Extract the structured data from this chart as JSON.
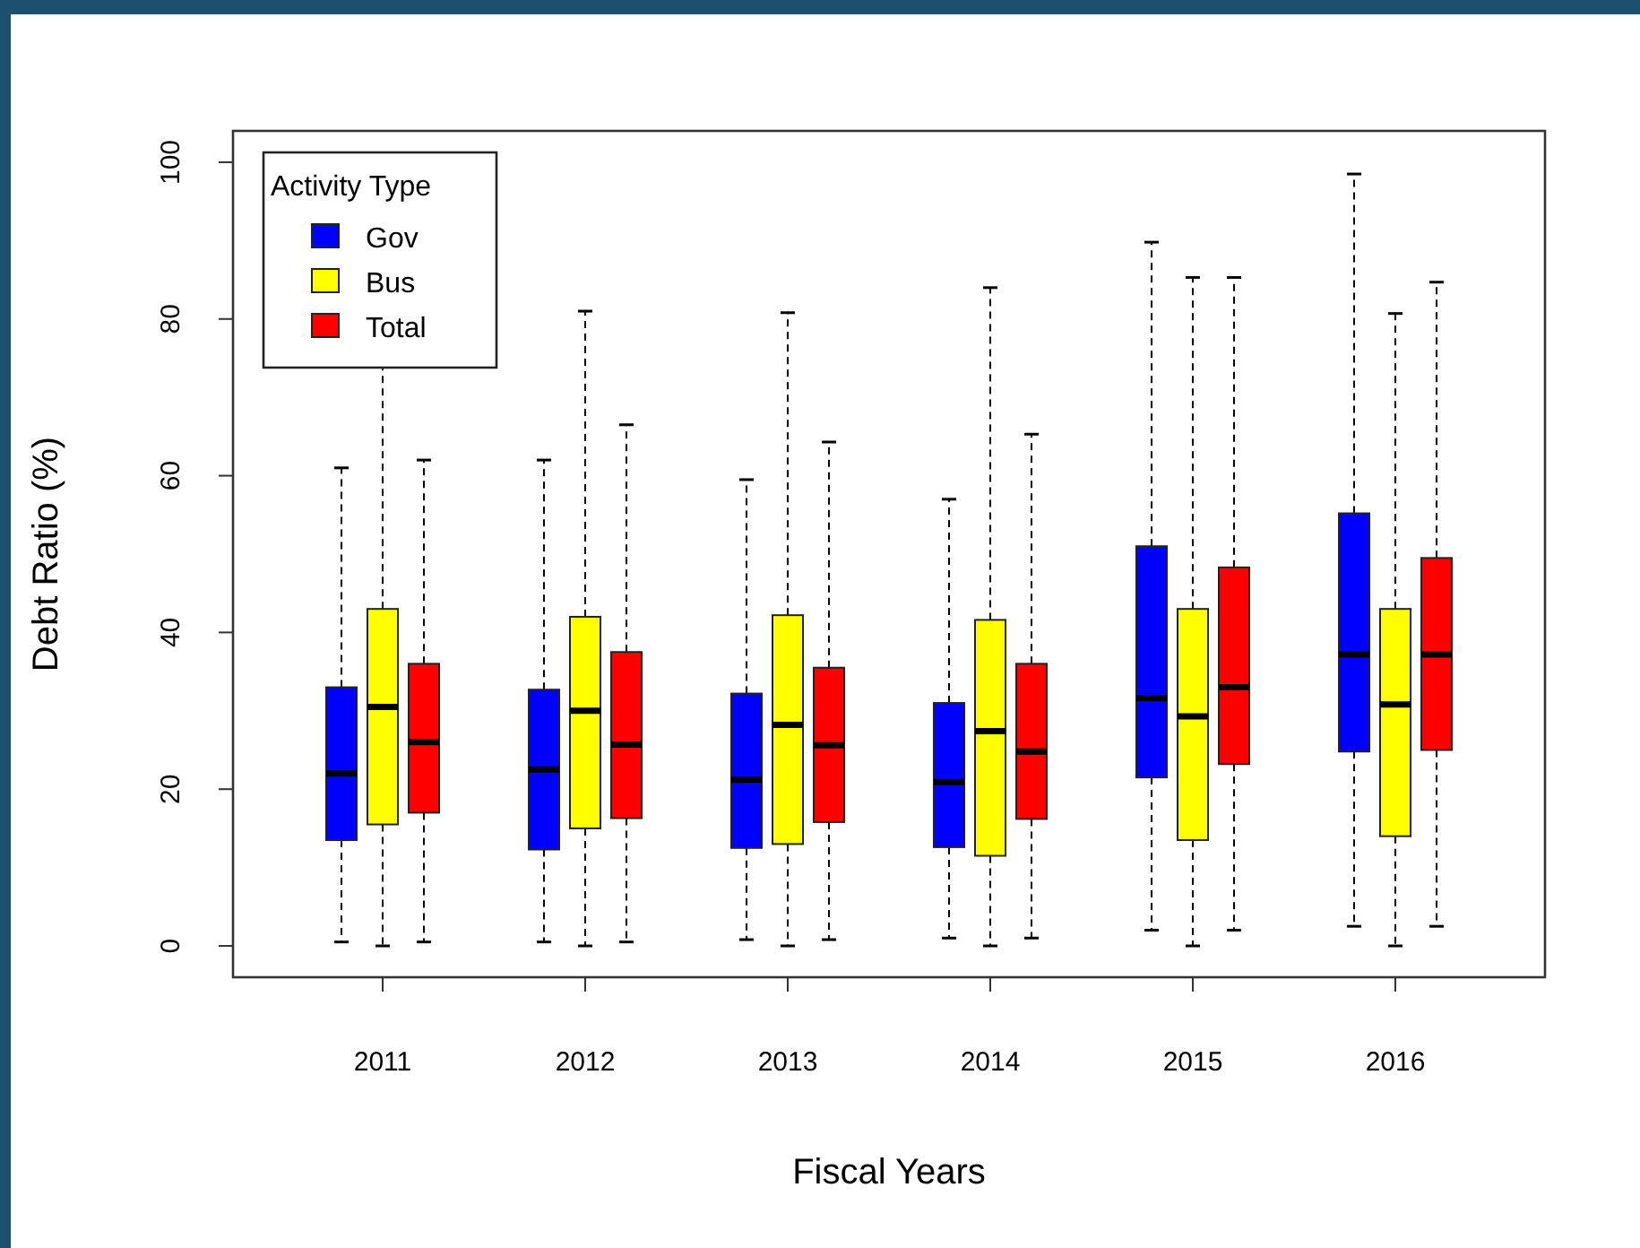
{
  "chart_data": {
    "type": "box",
    "xlabel": "Fiscal Years",
    "ylabel": "Debt Ratio (%)",
    "legend_title": "Activity Type",
    "legend": "top left",
    "categories": [
      "2011",
      "2012",
      "2013",
      "2014",
      "2015",
      "2016"
    ],
    "ylim": [
      -4,
      104
    ],
    "yticks": [
      0,
      20,
      40,
      60,
      80,
      100
    ],
    "line_style": "dashed",
    "series": [
      {
        "name": "Gov",
        "color": "#0000ff",
        "boxes": [
          {
            "low": 0.5,
            "q1": 13.5,
            "median": 22,
            "q3": 33,
            "high": 61
          },
          {
            "low": 0.5,
            "q1": 12.3,
            "median": 22.5,
            "q3": 32.7,
            "high": 62
          },
          {
            "low": 0.8,
            "q1": 12.5,
            "median": 21.2,
            "q3": 32.2,
            "high": 59.5
          },
          {
            "low": 1,
            "q1": 12.6,
            "median": 20.9,
            "q3": 31,
            "high": 57
          },
          {
            "low": 2,
            "q1": 21.5,
            "median": 31.6,
            "q3": 51,
            "high": 89.8
          },
          {
            "low": 2.5,
            "q1": 24.8,
            "median": 37.2,
            "q3": 55.2,
            "high": 98.5
          }
        ]
      },
      {
        "name": "Bus",
        "color": "#ffff00",
        "boxes": [
          {
            "low": 0,
            "q1": 15.5,
            "median": 30.5,
            "q3": 43,
            "high": null
          },
          {
            "low": 0,
            "q1": 15,
            "median": 30,
            "q3": 42,
            "high": 81
          },
          {
            "low": 0,
            "q1": 13,
            "median": 28.2,
            "q3": 42.2,
            "high": 80.8
          },
          {
            "low": 0,
            "q1": 11.5,
            "median": 27.4,
            "q3": 41.6,
            "high": 84
          },
          {
            "low": 0,
            "q1": 13.5,
            "median": 29.3,
            "q3": 43,
            "high": 85.3
          },
          {
            "low": 0,
            "q1": 14,
            "median": 30.8,
            "q3": 43,
            "high": 80.7
          }
        ]
      },
      {
        "name": "Total",
        "color": "#ff0000",
        "boxes": [
          {
            "low": 0.5,
            "q1": 17,
            "median": 26,
            "q3": 36,
            "high": 62
          },
          {
            "low": 0.5,
            "q1": 16.3,
            "median": 25.7,
            "q3": 37.5,
            "high": 66.5
          },
          {
            "low": 0.8,
            "q1": 15.8,
            "median": 25.6,
            "q3": 35.5,
            "high": 64.3
          },
          {
            "low": 1,
            "q1": 16.2,
            "median": 24.8,
            "q3": 36,
            "high": 65.3
          },
          {
            "low": 2,
            "q1": 23.2,
            "median": 33,
            "q3": 48.3,
            "high": 85.3
          },
          {
            "low": 2.5,
            "q1": 25,
            "median": 37.2,
            "q3": 49.5,
            "high": 84.7
          }
        ]
      }
    ]
  }
}
